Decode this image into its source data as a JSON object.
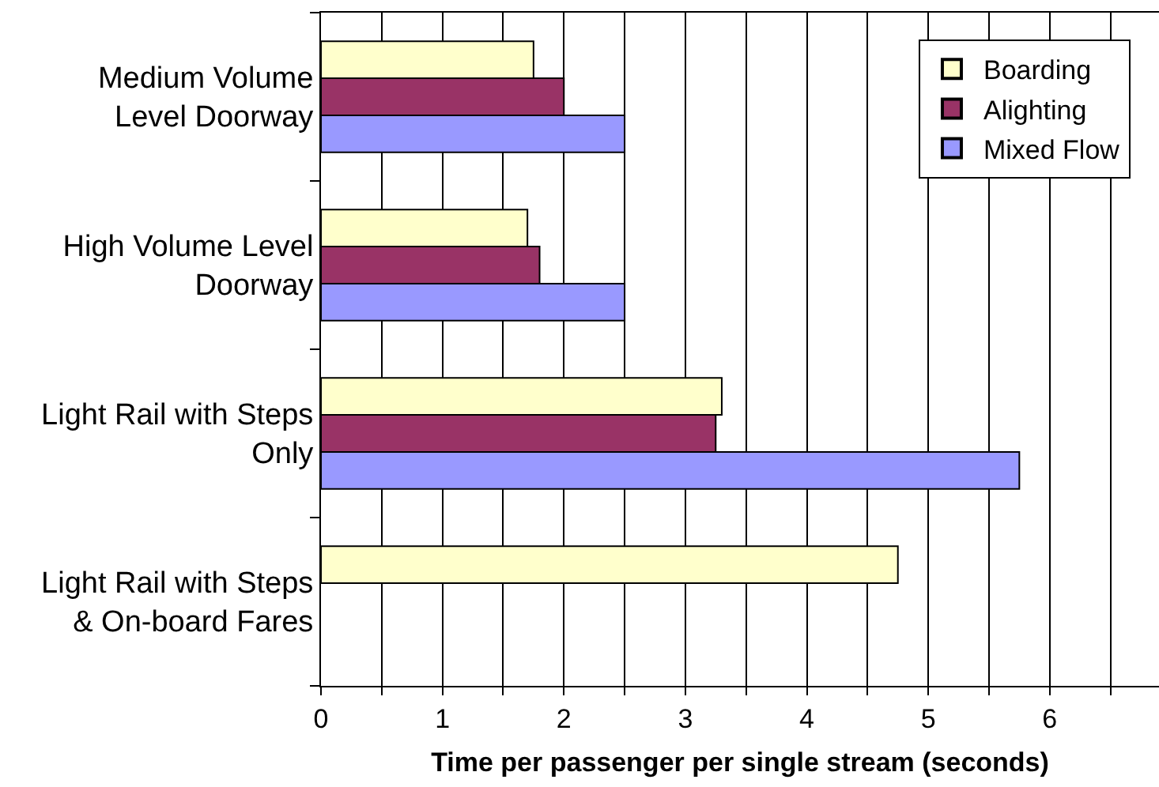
{
  "chart_data": {
    "type": "bar",
    "orientation": "horizontal",
    "categories": [
      "Medium Volume\nLevel Doorway",
      "High Volume Level\nDoorway",
      "Light Rail with Steps\nOnly",
      "Light Rail with Steps\n& On-board Fares"
    ],
    "series": [
      {
        "name": "Boarding",
        "color": "#ffffcc",
        "values": [
          1.75,
          1.7,
          3.3,
          4.75
        ]
      },
      {
        "name": "Alighting",
        "color": "#993366",
        "values": [
          2.0,
          1.8,
          3.25,
          null
        ]
      },
      {
        "name": "Mixed Flow",
        "color": "#9999ff",
        "values": [
          2.5,
          2.5,
          5.75,
          null
        ]
      }
    ],
    "xlabel": "Time per passenger per single stream (seconds)",
    "xlim": [
      0,
      6.9
    ],
    "xticks": [
      0,
      {
        "value": 0.5,
        "label": null
      },
      1,
      {
        "value": 1.5,
        "label": null
      },
      2,
      {
        "value": 2.5,
        "label": null
      },
      3,
      {
        "value": 3.5,
        "label": null
      },
      4,
      {
        "value": 4.5,
        "label": null
      },
      5,
      {
        "value": 5.5,
        "label": null
      },
      6,
      {
        "value": 6.5,
        "label": null
      }
    ],
    "grid": "x",
    "legend": "top right"
  }
}
